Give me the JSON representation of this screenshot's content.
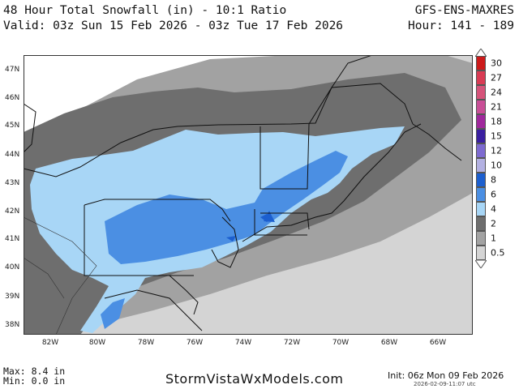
{
  "header": {
    "title_line1": "48 Hour Total Snowfall (in) - 10:1 Ratio",
    "title_line2": "Valid: 03z Sun 15 Feb 2026 - 03z Tue 17 Feb 2026",
    "model": "GFS-ENS-MAXRES",
    "hours": "Hour: 141 - 189"
  },
  "axes": {
    "lat_labels": [
      "47N",
      "46N",
      "45N",
      "44N",
      "43N",
      "42N",
      "41N",
      "40N",
      "39N",
      "38N"
    ],
    "lon_labels": [
      "82W",
      "80W",
      "78W",
      "76W",
      "74W",
      "72W",
      "70W",
      "68W",
      "66W"
    ]
  },
  "legend": {
    "items": [
      {
        "label": "30",
        "color": "#cc1a1a"
      },
      {
        "label": "27",
        "color": "#d93b54"
      },
      {
        "label": "24",
        "color": "#d6537a"
      },
      {
        "label": "21",
        "color": "#c94f97"
      },
      {
        "label": "18",
        "color": "#a0289c"
      },
      {
        "label": "15",
        "color": "#3a1fa0"
      },
      {
        "label": "12",
        "color": "#7d6ad0"
      },
      {
        "label": "10",
        "color": "#b3b1e2"
      },
      {
        "label": "8",
        "color": "#1c5fcf"
      },
      {
        "label": "6",
        "color": "#4b8fe3"
      },
      {
        "label": "4",
        "color": "#a8d6f6"
      },
      {
        "label": "2",
        "color": "#6e6e6e"
      },
      {
        "label": "1",
        "color": "#a2a2a2"
      },
      {
        "label": "0.5",
        "color": "#d4d4d4"
      }
    ]
  },
  "stats": {
    "max": "Max: 8.4 in",
    "min": "Min: 0.0 in"
  },
  "footer": {
    "site": "StormVistaWxModels.com",
    "init": "Init: 06z Mon 09 Feb 2026",
    "timestamp": "2026-02-09-11:07 utc"
  }
}
